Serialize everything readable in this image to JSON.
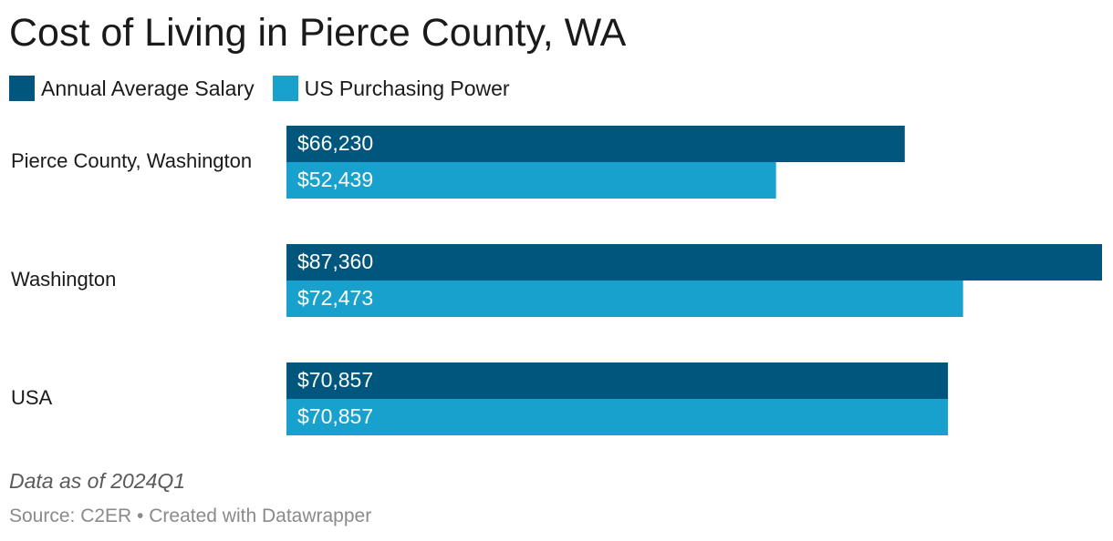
{
  "title": "Cost of Living in Pierce County, WA",
  "notes": "Data as of 2024Q1",
  "source": "Source: C2ER • Created with Datawrapper",
  "legend": [
    {
      "label": "Annual Average Salary",
      "color": "#00567d"
    },
    {
      "label": "US Purchasing Power",
      "color": "#18a1cd"
    }
  ],
  "chart_data": {
    "type": "bar",
    "orientation": "horizontal",
    "title": "Cost of Living in Pierce County, WA",
    "categories": [
      "Pierce County, Washington",
      "Washington",
      "USA"
    ],
    "series": [
      {
        "name": "Annual Average Salary",
        "color": "#00567d",
        "values": [
          66230,
          87360,
          70857
        ],
        "labels": [
          "$66,230",
          "$87,360",
          "$70,857"
        ]
      },
      {
        "name": "US Purchasing Power",
        "color": "#18a1cd",
        "values": [
          52439,
          72473,
          70857
        ],
        "labels": [
          "$52,439",
          "$72,473",
          "$70,857"
        ]
      }
    ],
    "xlim": [
      0,
      87360
    ],
    "grid": false,
    "legend_position": "top-left"
  }
}
